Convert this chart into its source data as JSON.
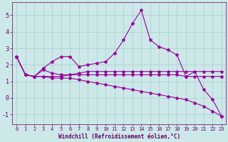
{
  "xlabel": "Windchill (Refroidissement éolien,°C)",
  "x": [
    0,
    1,
    2,
    3,
    4,
    5,
    6,
    7,
    8,
    9,
    10,
    11,
    12,
    13,
    14,
    15,
    16,
    17,
    18,
    19,
    20,
    21,
    22,
    23
  ],
  "line1": [
    2.5,
    1.4,
    1.3,
    1.8,
    2.2,
    2.5,
    2.5,
    1.9,
    2.0,
    2.1,
    2.2,
    2.7,
    3.5,
    4.5,
    5.3,
    3.5,
    3.1,
    2.9,
    2.6,
    1.3,
    1.6,
    0.5,
    -0.1,
    -1.1
  ],
  "line2": [
    2.5,
    1.4,
    1.3,
    1.7,
    1.5,
    1.4,
    1.4,
    1.5,
    1.6,
    1.6,
    1.6,
    1.6,
    1.6,
    1.6,
    1.6,
    1.6,
    1.6,
    1.6,
    1.6,
    1.6,
    1.6,
    1.6,
    1.6,
    1.6
  ],
  "line3": [
    2.5,
    1.4,
    1.3,
    1.3,
    1.3,
    1.3,
    1.4,
    1.4,
    1.4,
    1.4,
    1.4,
    1.4,
    1.4,
    1.4,
    1.4,
    1.4,
    1.4,
    1.4,
    1.4,
    1.3,
    1.3,
    1.3,
    1.3,
    1.3
  ],
  "line4": [
    2.5,
    1.4,
    1.3,
    1.3,
    1.2,
    1.2,
    1.2,
    1.1,
    1.0,
    0.9,
    0.8,
    0.7,
    0.6,
    0.5,
    0.4,
    0.3,
    0.2,
    0.1,
    0.0,
    -0.1,
    -0.3,
    -0.5,
    -0.8,
    -1.1
  ],
  "line_color": "#990099",
  "bg_color": "#cce8e8",
  "grid_color": "#aacccc",
  "axis_color": "#660066",
  "ylim": [
    -1.6,
    5.8
  ],
  "xlim": [
    -0.5,
    23.5
  ],
  "yticks": [
    -1,
    0,
    1,
    2,
    3,
    4,
    5
  ],
  "xticks": [
    0,
    1,
    2,
    3,
    4,
    5,
    6,
    7,
    8,
    9,
    10,
    11,
    12,
    13,
    14,
    15,
    16,
    17,
    18,
    19,
    20,
    21,
    22,
    23
  ],
  "marker": "*",
  "markersize": 3,
  "linewidth": 0.8,
  "tick_fontsize": 5,
  "xlabel_fontsize": 5.5
}
